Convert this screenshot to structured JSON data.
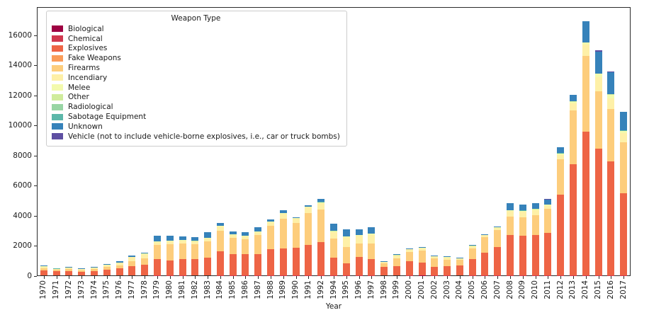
{
  "legend": {
    "title": "Weapon Type"
  },
  "chart_data": {
    "type": "bar",
    "stacked": true,
    "title": "",
    "xlabel": "Year",
    "ylabel": "",
    "ylim": [
      0,
      17900
    ],
    "y_ticks": [
      0,
      2000,
      4000,
      6000,
      8000,
      10000,
      12000,
      14000,
      16000
    ],
    "grid": false,
    "legend_position": "upper left",
    "categories": [
      1970,
      1971,
      1972,
      1973,
      1974,
      1975,
      1976,
      1977,
      1978,
      1979,
      1980,
      1981,
      1982,
      1983,
      1984,
      1985,
      1986,
      1987,
      1988,
      1989,
      1990,
      1991,
      1992,
      1994,
      1995,
      1996,
      1997,
      1998,
      1999,
      2000,
      2001,
      2002,
      2003,
      2004,
      2005,
      2006,
      2007,
      2008,
      2009,
      2010,
      2011,
      2012,
      2013,
      2014,
      2015,
      2016,
      2017
    ],
    "series": [
      {
        "name": "Biological",
        "color": "#9e0142",
        "values": [
          1,
          0,
          0,
          0,
          0,
          0,
          0,
          0,
          0,
          0,
          0,
          0,
          0,
          0,
          0,
          0,
          0,
          0,
          0,
          0,
          0,
          0,
          0,
          0,
          0,
          0,
          0,
          0,
          0,
          0,
          5,
          0,
          0,
          0,
          0,
          0,
          0,
          0,
          0,
          0,
          0,
          0,
          0,
          0,
          0,
          0,
          0
        ]
      },
      {
        "name": "Chemical",
        "color": "#d0384e",
        "values": [
          2,
          1,
          2,
          0,
          0,
          0,
          0,
          3,
          3,
          4,
          5,
          4,
          3,
          3,
          4,
          4,
          5,
          4,
          5,
          6,
          6,
          6,
          8,
          6,
          12,
          6,
          8,
          3,
          3,
          4,
          5,
          4,
          4,
          3,
          4,
          4,
          4,
          6,
          6,
          6,
          6,
          6,
          6,
          8,
          10,
          12,
          10
        ]
      },
      {
        "name": "Explosives",
        "color": "#ee6445",
        "values": [
          330,
          280,
          300,
          220,
          290,
          390,
          450,
          630,
          700,
          1100,
          1000,
          1060,
          1070,
          1180,
          1620,
          1400,
          1430,
          1400,
          1760,
          1800,
          1850,
          2020,
          2230,
          1150,
          780,
          1200,
          1100,
          560,
          630,
          930,
          850,
          560,
          600,
          650,
          1060,
          1510,
          1900,
          2680,
          2640,
          2690,
          2800,
          5380,
          7400,
          9550,
          8400,
          7590,
          5450
        ]
      },
      {
        "name": "Fake Weapons",
        "color": "#fa9c59",
        "values": [
          1,
          0,
          0,
          0,
          0,
          0,
          0,
          0,
          0,
          2,
          0,
          0,
          0,
          0,
          0,
          0,
          0,
          0,
          0,
          0,
          0,
          0,
          0,
          0,
          0,
          0,
          0,
          0,
          0,
          0,
          0,
          0,
          0,
          0,
          0,
          0,
          0,
          0,
          0,
          0,
          0,
          0,
          0,
          0,
          0,
          0,
          0
        ]
      },
      {
        "name": "Firearms",
        "color": "#fdcd7c",
        "values": [
          120,
          85,
          105,
          95,
          115,
          160,
          210,
          300,
          420,
          900,
          1060,
          1060,
          980,
          1080,
          1350,
          1090,
          950,
          1260,
          1530,
          1950,
          1610,
          2130,
          2150,
          1300,
          1100,
          930,
          1000,
          230,
          480,
          630,
          800,
          560,
          450,
          390,
          720,
          1030,
          1120,
          1220,
          1230,
          1310,
          1600,
          2360,
          3560,
          5050,
          3860,
          3480,
          3420
        ]
      },
      {
        "name": "Incendiary",
        "color": "#fef0a7",
        "values": [
          130,
          75,
          105,
          110,
          120,
          130,
          190,
          280,
          300,
          230,
          200,
          200,
          200,
          200,
          290,
          200,
          230,
          210,
          240,
          330,
          300,
          350,
          400,
          440,
          650,
          490,
          600,
          95,
          210,
          160,
          150,
          130,
          140,
          70,
          150,
          130,
          140,
          370,
          370,
          350,
          230,
          270,
          490,
          760,
          940,
          680,
          580
        ]
      },
      {
        "name": "Melee",
        "color": "#f3faad",
        "values": [
          8,
          5,
          8,
          6,
          8,
          10,
          12,
          15,
          20,
          30,
          30,
          28,
          28,
          25,
          25,
          25,
          28,
          30,
          35,
          40,
          35,
          45,
          50,
          45,
          45,
          45,
          55,
          15,
          20,
          25,
          22,
          20,
          18,
          15,
          20,
          22,
          25,
          45,
          45,
          50,
          60,
          85,
          90,
          130,
          200,
          240,
          140
        ]
      },
      {
        "name": "Other",
        "color": "#d0ec9c",
        "values": [
          5,
          3,
          5,
          4,
          5,
          6,
          7,
          8,
          10,
          12,
          12,
          10,
          10,
          10,
          12,
          12,
          12,
          15,
          15,
          20,
          18,
          22,
          30,
          25,
          20,
          20,
          25,
          8,
          10,
          12,
          15,
          10,
          8,
          6,
          8,
          8,
          8,
          20,
          20,
          25,
          25,
          25,
          25,
          15,
          25,
          45,
          30
        ]
      },
      {
        "name": "Radiological",
        "color": "#98d5a4",
        "values": [
          0,
          0,
          0,
          0,
          0,
          0,
          0,
          0,
          0,
          0,
          0,
          0,
          0,
          0,
          0,
          0,
          0,
          0,
          0,
          0,
          0,
          0,
          0,
          0,
          0,
          0,
          0,
          0,
          0,
          0,
          0,
          0,
          0,
          0,
          0,
          0,
          0,
          0,
          0,
          0,
          0,
          0,
          0,
          0,
          0,
          0,
          0
        ]
      },
      {
        "name": "Sabotage Equipment",
        "color": "#5cb7a9",
        "values": [
          4,
          2,
          3,
          3,
          3,
          4,
          4,
          3,
          3,
          4,
          5,
          4,
          3,
          2,
          4,
          4,
          5,
          4,
          6,
          8,
          8,
          10,
          13,
          10,
          4,
          7,
          9,
          3,
          2,
          3,
          4,
          4,
          3,
          2,
          5,
          4,
          5,
          14,
          10,
          15,
          10,
          11,
          10,
          5,
          10,
          20,
          15
        ]
      },
      {
        "name": "Unknown",
        "color": "#3682ba",
        "values": [
          50,
          20,
          40,
          35,
          40,
          40,
          50,
          80,
          70,
          380,
          350,
          220,
          250,
          370,
          190,
          180,
          200,
          260,
          130,
          170,
          60,
          100,
          190,
          480,
          470,
          360,
          400,
          20,
          40,
          50,
          50,
          45,
          55,
          30,
          50,
          50,
          40,
          450,
          400,
          380,
          330,
          380,
          450,
          1380,
          1430,
          1470,
          1230
        ]
      },
      {
        "name": "Vehicle (not to include vehicle-borne explosives, i.e., car or truck bombs)",
        "color": "#5e4fa2",
        "values": [
          0,
          0,
          0,
          0,
          0,
          0,
          0,
          0,
          0,
          0,
          0,
          0,
          0,
          0,
          0,
          0,
          0,
          0,
          0,
          0,
          0,
          0,
          0,
          0,
          0,
          0,
          0,
          0,
          0,
          0,
          5,
          0,
          0,
          0,
          0,
          0,
          0,
          0,
          0,
          0,
          15,
          5,
          5,
          5,
          90,
          50,
          25
        ]
      }
    ]
  }
}
